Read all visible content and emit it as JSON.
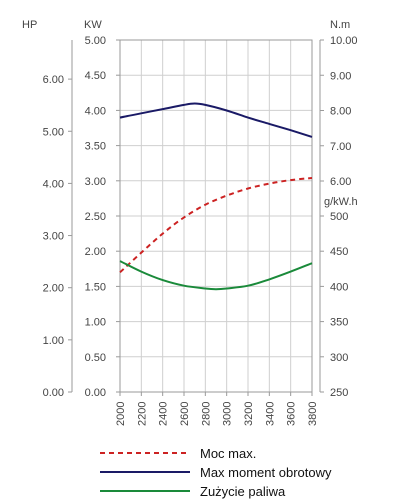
{
  "chart_data": {
    "type": "line",
    "x_ticks": [
      "2000",
      "2200",
      "2400",
      "2600",
      "2800",
      "3000",
      "3200",
      "3400",
      "3600",
      "3800"
    ],
    "xlim": [
      2000,
      3800
    ],
    "axes": {
      "hp": {
        "unit": "HP",
        "ticks": [
          "0.00",
          "1.00",
          "2.00",
          "3.00",
          "4.00",
          "5.00",
          "6.00"
        ],
        "range": [
          0,
          6.75
        ]
      },
      "kw": {
        "unit": "KW",
        "ticks": [
          "0.00",
          "0.50",
          "1.00",
          "1.50",
          "2.00",
          "2.50",
          "3.00",
          "3.50",
          "4.00",
          "4.50",
          "5.00"
        ],
        "range": [
          0,
          5
        ]
      },
      "nm": {
        "unit": "N.m",
        "ticks": [
          "6.00",
          "7.00",
          "8.00",
          "9.00",
          "10.00"
        ],
        "range": [
          6,
          10
        ]
      },
      "gkw": {
        "unit": "g/kW.h",
        "ticks": [
          "250",
          "300",
          "350",
          "400",
          "450",
          "500"
        ],
        "range": [
          250,
          500
        ]
      }
    },
    "series": [
      {
        "name": "Moc max.",
        "axis": "kw",
        "color": "#cc2222",
        "style": "dashed",
        "x": [
          2000,
          2200,
          2400,
          2600,
          2800,
          3000,
          3200,
          3400,
          3600,
          3800
        ],
        "y": [
          1.7,
          1.98,
          2.25,
          2.48,
          2.66,
          2.79,
          2.89,
          2.96,
          3.01,
          3.04
        ]
      },
      {
        "name": "Max moment obrotowy",
        "axis": "nm",
        "color": "#1a1a66",
        "style": "solid",
        "x": [
          2000,
          2200,
          2400,
          2600,
          2700,
          2800,
          3000,
          3200,
          3400,
          3600,
          3800
        ],
        "y": [
          7.8,
          7.92,
          8.04,
          8.16,
          8.2,
          8.16,
          8.0,
          7.8,
          7.62,
          7.44,
          7.25
        ]
      },
      {
        "name": "Zużycie paliwa",
        "axis": "gkw",
        "color": "#1a8a3a",
        "style": "solid",
        "x": [
          2000,
          2200,
          2400,
          2600,
          2800,
          2900,
          3000,
          3200,
          3400,
          3600,
          3800
        ],
        "y": [
          436,
          421,
          409,
          401,
          397,
          396,
          397,
          401,
          410,
          421,
          433
        ]
      }
    ],
    "grid": true
  }
}
